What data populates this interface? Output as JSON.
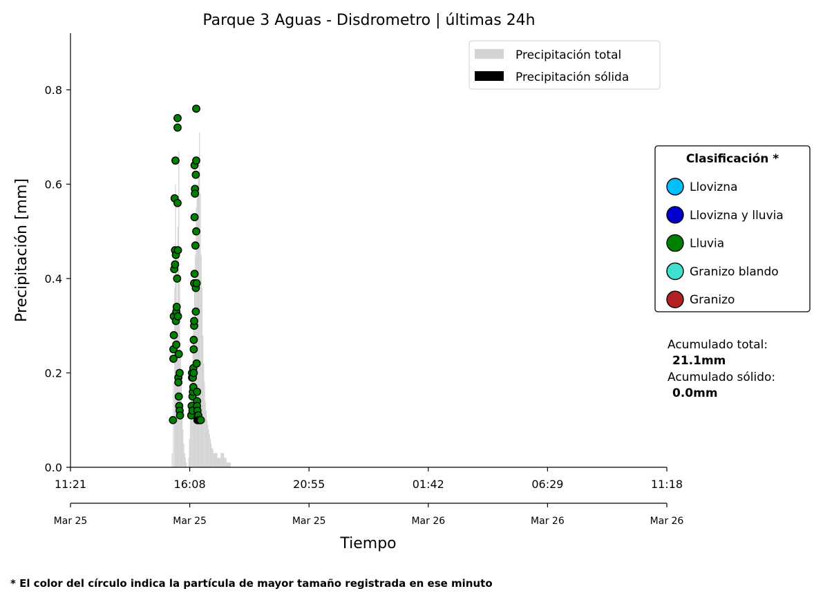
{
  "chart_data": {
    "type": "bar",
    "title": "Parque 3 Aguas - Disdrometro  |  últimas 24h",
    "ylabel": "Precipitación [mm]",
    "xlabel": "Tiempo",
    "ylim": [
      0,
      0.92
    ],
    "xlim": [
      "11:21",
      "11:18"
    ],
    "grid": false,
    "y_ticks": [
      "0.0",
      "0.2",
      "0.4",
      "0.6",
      "0.8"
    ],
    "x_ticks": [
      "11:21",
      "16:08",
      "20:55",
      "01:42",
      "06:29",
      "11:18"
    ],
    "x_date_ticks": [
      "Mar 25",
      "Mar 25",
      "Mar 25",
      "Mar 26",
      "Mar 26",
      "Mar 26"
    ],
    "legend_placement": "top-right",
    "legend": [
      {
        "label": "Precipitación total",
        "color": "#d3d3d3"
      },
      {
        "label": "Precipitación sólida",
        "color": "#000000"
      }
    ],
    "series": [
      {
        "name": "Precipitación total",
        "color": "#d3d3d3",
        "x_minutes": [
          245,
          248,
          251,
          253,
          255,
          257,
          259,
          261,
          263,
          265,
          267,
          269,
          271,
          273,
          275,
          277,
          279,
          281,
          283,
          285,
          287,
          289,
          291,
          293,
          295,
          297,
          299,
          301,
          303,
          305,
          307,
          309,
          311,
          313,
          315,
          317,
          319,
          321,
          323,
          325,
          327,
          329,
          331,
          333,
          335,
          337,
          339,
          341,
          343,
          345,
          347,
          349,
          351,
          353,
          355,
          357,
          359,
          361,
          363,
          365,
          367,
          369,
          371,
          373,
          375,
          377,
          379,
          381,
          383,
          385
        ],
        "values": [
          0.03,
          0.18,
          0.38,
          0.6,
          0.45,
          0.33,
          0.51,
          0.67,
          0.4,
          0.25,
          0.18,
          0.12,
          0.08,
          0.05,
          0.03,
          0.02,
          0.01,
          0.0,
          0.0,
          0.02,
          0.06,
          0.12,
          0.16,
          0.2,
          0.28,
          0.3,
          0.38,
          0.45,
          0.55,
          0.57,
          0.6,
          0.62,
          0.71,
          0.58,
          0.45,
          0.38,
          0.28,
          0.22,
          0.18,
          0.14,
          0.12,
          0.1,
          0.09,
          0.08,
          0.07,
          0.06,
          0.05,
          0.04,
          0.04,
          0.03,
          0.03,
          0.03,
          0.03,
          0.03,
          0.02,
          0.02,
          0.02,
          0.02,
          0.03,
          0.03,
          0.03,
          0.03,
          0.02,
          0.02,
          0.02,
          0.01,
          0.01,
          0.01,
          0.01,
          0.01
        ]
      },
      {
        "name": "Precipitación sólida",
        "color": "#000000",
        "x_minutes": [],
        "values": []
      }
    ],
    "points": {
      "classification": "Lluvia",
      "color": "#008000",
      "x_minutes": [
        247,
        248,
        248,
        249,
        249,
        250,
        251,
        252,
        252,
        253,
        254,
        254,
        255,
        255,
        256,
        257,
        258,
        258,
        258,
        259,
        259,
        260,
        260,
        261,
        261,
        262,
        263,
        263,
        264,
        291,
        292,
        293,
        293,
        294,
        294,
        295,
        295,
        296,
        296,
        297,
        297,
        297,
        298,
        298,
        298,
        299,
        299,
        299,
        300,
        300,
        301,
        302,
        302,
        302,
        303,
        303,
        303,
        304,
        304,
        305,
        305,
        305,
        306,
        306,
        306,
        307,
        307,
        308,
        309,
        310,
        311,
        312,
        313,
        314
      ],
      "values": [
        0.1,
        0.23,
        0.25,
        0.28,
        0.32,
        0.42,
        0.57,
        0.43,
        0.46,
        0.65,
        0.31,
        0.45,
        0.26,
        0.33,
        0.34,
        0.4,
        0.56,
        0.72,
        0.74,
        0.46,
        0.32,
        0.19,
        0.18,
        0.15,
        0.24,
        0.13,
        0.12,
        0.2,
        0.11,
        0.11,
        0.13,
        0.19,
        0.2,
        0.12,
        0.15,
        0.16,
        0.19,
        0.17,
        0.21,
        0.2,
        0.25,
        0.27,
        0.3,
        0.31,
        0.39,
        0.41,
        0.53,
        0.64,
        0.59,
        0.58,
        0.47,
        0.38,
        0.62,
        0.33,
        0.65,
        0.76,
        0.5,
        0.39,
        0.22,
        0.16,
        0.14,
        0.13,
        0.12,
        0.1,
        0.1,
        0.11,
        0.1,
        0.11,
        0.1,
        0.1,
        0.1,
        0.1,
        0.1,
        0.1
      ]
    }
  },
  "classification_legend": {
    "title": "Clasificación *",
    "items": [
      {
        "label": "Llovizna",
        "color": "#00bfff"
      },
      {
        "label": "Llovizna y lluvia",
        "color": "#0000cd"
      },
      {
        "label": "Lluvia",
        "color": "#008000"
      },
      {
        "label": "Granizo blando",
        "color": "#40e0d0"
      },
      {
        "label": "Granizo",
        "color": "#b22222"
      }
    ]
  },
  "stats": {
    "total_label": "Acumulado total:",
    "total_value": "21.1mm",
    "solid_label": "Acumulado sólido:",
    "solid_value": "0.0mm"
  },
  "footnote": "* El color del círculo indica la partícula de mayor tamaño registrada en ese minuto"
}
